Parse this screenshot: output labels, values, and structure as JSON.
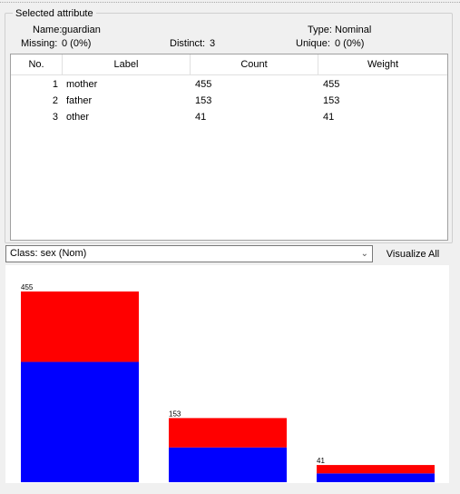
{
  "panel": {
    "title": "Selected attribute",
    "name_label": "Name:",
    "name_value": "guardian",
    "type_label": "Type:",
    "type_value": "Nominal",
    "missing_label": "Missing:",
    "missing_value": "0 (0%)",
    "distinct_label": "Distinct:",
    "distinct_value": "3",
    "unique_label": "Unique:",
    "unique_value": "0 (0%)"
  },
  "table": {
    "headers": [
      "No.",
      "Label",
      "Count",
      "Weight"
    ],
    "rows": [
      {
        "no": "1",
        "label": "mother",
        "count": "455",
        "weight": "455"
      },
      {
        "no": "2",
        "label": "father",
        "count": "153",
        "weight": "153"
      },
      {
        "no": "3",
        "label": "other",
        "count": "41",
        "weight": "41"
      }
    ]
  },
  "class_selector": {
    "value": "Class: sex (Nom)"
  },
  "visualize_button": "Visualize All",
  "colors": {
    "class_a": "#ff0000",
    "class_b": "#0000ff"
  },
  "chart_data": {
    "type": "bar",
    "stacked": true,
    "categories": [
      "mother",
      "father",
      "other"
    ],
    "totals": [
      455,
      153,
      41
    ],
    "series": [
      {
        "color": "#0000ff",
        "values": [
          287,
          83,
          21
        ]
      },
      {
        "color": "#ff0000",
        "values": [
          168,
          70,
          20
        ]
      }
    ],
    "data_labels": [
      "455",
      "153",
      "41"
    ],
    "ylim": [
      0,
      455
    ]
  }
}
